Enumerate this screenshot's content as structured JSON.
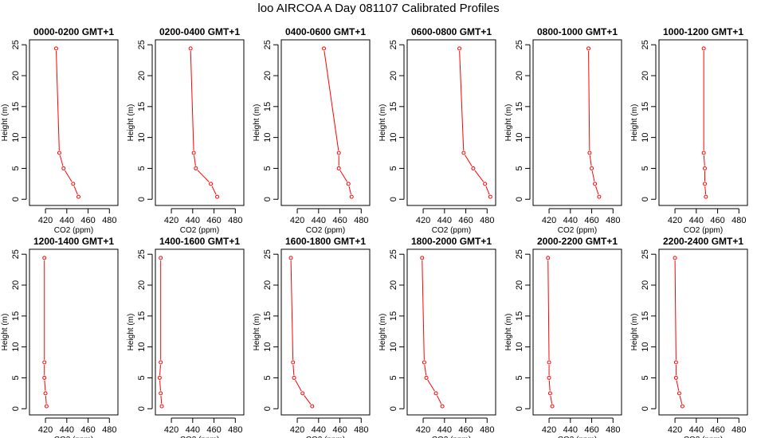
{
  "figure": {
    "title": "loo AIRCOA A  Day 081107  Calibrated Profiles"
  },
  "chart_data": {
    "type": "scatter",
    "connected": true,
    "series_color": "#ff0000",
    "xlabel": "CO2 (ppm)",
    "ylabel": "Height (m)",
    "xlim": [
      405,
      488
    ],
    "ylim": [
      -1,
      25.8
    ],
    "xticks": [
      420,
      440,
      460,
      480
    ],
    "yticks": [
      0,
      5,
      10,
      15,
      20,
      25
    ],
    "heights": [
      24.4,
      7.5,
      5.0,
      2.5,
      0.4
    ],
    "panels": [
      {
        "title": "0000-0200 GMT+1",
        "co2": [
          430,
          433,
          437,
          446,
          451
        ]
      },
      {
        "title": "0200-0400 GMT+1",
        "co2": [
          438,
          441,
          443,
          457,
          463
        ]
      },
      {
        "title": "0400-0600 GMT+1",
        "co2": [
          445,
          459,
          459,
          468,
          471
        ]
      },
      {
        "title": "0600-0800 GMT+1",
        "co2": [
          454,
          458,
          467,
          478,
          483
        ]
      },
      {
        "title": "0800-1000 GMT+1",
        "co2": [
          457,
          458,
          460,
          463,
          467
        ]
      },
      {
        "title": "1000-1200 GMT+1",
        "co2": [
          447,
          447,
          448,
          448,
          449
        ]
      },
      {
        "title": "1200-1400 GMT+1",
        "co2": [
          419,
          419,
          419,
          420,
          421
        ]
      },
      {
        "title": "1400-1600 GMT+1",
        "co2": [
          410,
          410,
          409,
          410,
          411
        ]
      },
      {
        "title": "1600-1800 GMT+1",
        "co2": [
          414,
          416,
          417,
          425,
          434
        ]
      },
      {
        "title": "1800-2000 GMT+1",
        "co2": [
          419,
          421,
          423,
          432,
          438
        ]
      },
      {
        "title": "2000-2200 GMT+1",
        "co2": [
          419,
          420,
          420,
          421,
          423
        ]
      },
      {
        "title": "2200-2400 GMT+1",
        "co2": [
          420,
          421,
          421,
          424,
          427
        ]
      }
    ]
  }
}
